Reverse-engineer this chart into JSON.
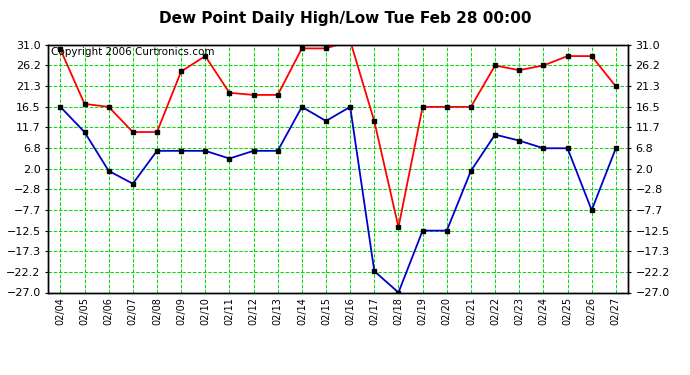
{
  "title": "Dew Point Daily High/Low Tue Feb 28 00:00",
  "copyright": "Copyright 2006 Curtronics.com",
  "dates": [
    "02/04",
    "02/05",
    "02/06",
    "02/07",
    "02/08",
    "02/09",
    "02/10",
    "02/11",
    "02/12",
    "02/13",
    "02/14",
    "02/15",
    "02/16",
    "02/17",
    "02/18",
    "02/19",
    "02/20",
    "02/21",
    "02/22",
    "02/23",
    "02/24",
    "02/25",
    "02/26",
    "02/27"
  ],
  "high_values": [
    30.0,
    17.2,
    16.5,
    10.6,
    10.6,
    24.8,
    28.4,
    19.8,
    19.3,
    19.3,
    30.2,
    30.2,
    32.0,
    13.1,
    -11.7,
    16.5,
    16.5,
    16.5,
    26.2,
    25.1,
    26.2,
    28.4,
    28.4,
    21.3
  ],
  "low_values": [
    16.5,
    10.6,
    1.5,
    -1.5,
    6.2,
    6.2,
    6.2,
    4.4,
    6.2,
    6.2,
    16.5,
    13.2,
    16.5,
    -22.0,
    -27.0,
    -12.5,
    -12.5,
    1.5,
    10.0,
    8.6,
    6.8,
    6.8,
    -7.7,
    6.8
  ],
  "ylim": [
    -27.0,
    31.0
  ],
  "yticks": [
    31.0,
    26.2,
    21.3,
    16.5,
    11.7,
    6.8,
    2.0,
    -2.8,
    -7.7,
    -12.5,
    -17.3,
    -22.2,
    -27.0
  ],
  "high_color": "#ff0000",
  "low_color": "#0000cc",
  "marker_color": "#000000",
  "grid_color": "#00dd00",
  "background_color": "#ffffff",
  "plot_background": "#ffffff",
  "title_fontsize": 11,
  "copyright_fontsize": 7.5,
  "tick_fontsize": 8,
  "xtick_fontsize": 7
}
